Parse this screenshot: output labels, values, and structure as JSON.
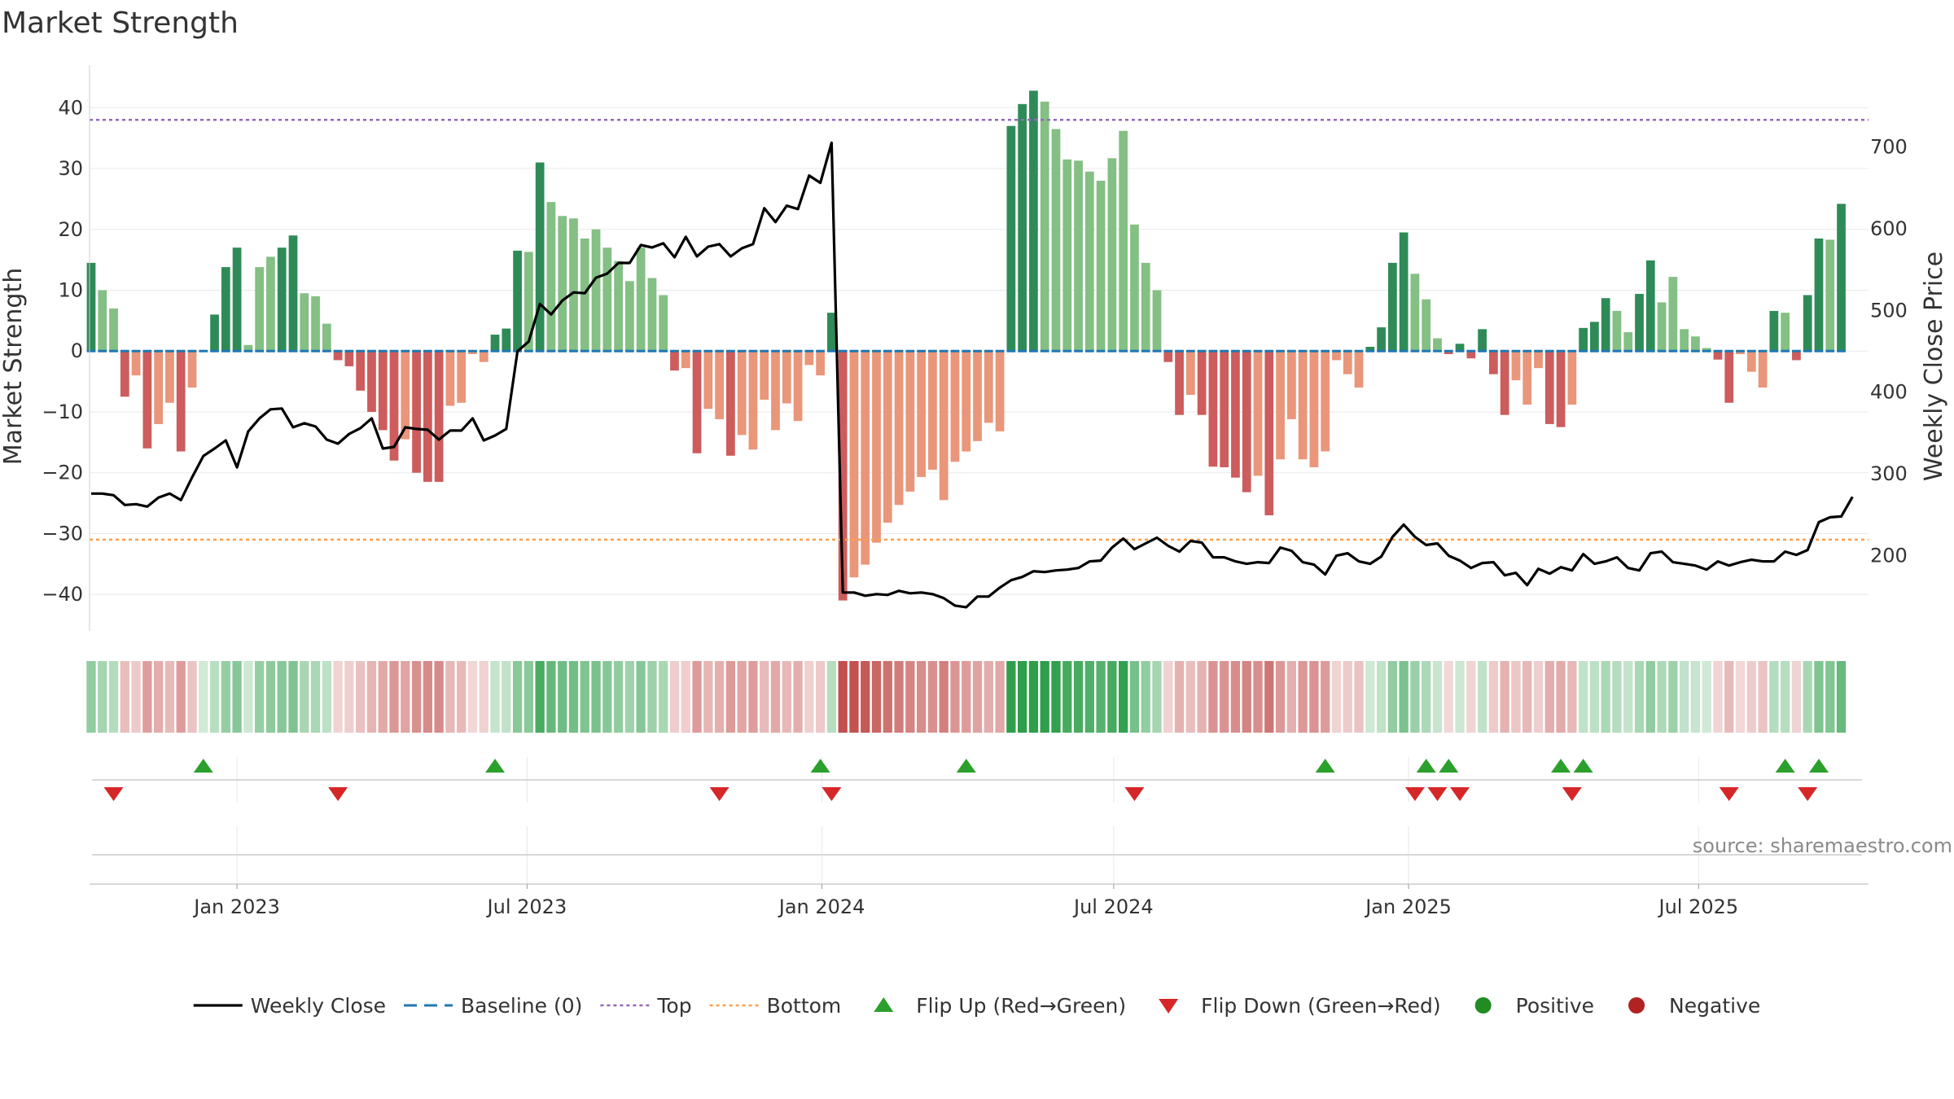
{
  "chart_data": {
    "type": "bar",
    "title": "Market Strength",
    "ylabel": "Market Strength",
    "y2label": "Weekly Close Price",
    "ylim": [
      -46,
      47
    ],
    "y2lim": [
      108,
      800
    ],
    "yticks": [
      40,
      30,
      20,
      10,
      0,
      -10,
      -20,
      -30,
      -40
    ],
    "y2ticks": [
      700,
      600,
      500,
      400,
      300,
      200
    ],
    "grid": true,
    "legend_position": "bottom",
    "top_threshold": 38,
    "bottom_threshold": -31,
    "x_range": [
      "2022-10-01",
      "2025-10-15"
    ],
    "x_ticks": [
      {
        "date": "2023-01-01",
        "label": "Jan 2023"
      },
      {
        "date": "2023-07-01",
        "label": "Jul 2023"
      },
      {
        "date": "2024-01-01",
        "label": "Jan 2024"
      },
      {
        "date": "2024-07-01",
        "label": "Jul 2024"
      },
      {
        "date": "2025-01-01",
        "label": "Jan 2025"
      },
      {
        "date": "2025-07-01",
        "label": "Jul 2025"
      }
    ],
    "start_date": "2022-10-02",
    "week_step_days": 7,
    "strength": [
      14.5,
      10,
      7,
      -7.5,
      -4,
      -16,
      -12,
      -8.5,
      -16.5,
      -6,
      0,
      6,
      13.8,
      17,
      1,
      13.8,
      15.5,
      17,
      19,
      9.5,
      9,
      4.5,
      -1.5,
      -2.5,
      -6.5,
      -10,
      -13,
      -18,
      -14.5,
      -20,
      -21.5,
      -21.5,
      -9,
      -8.5,
      -0.5,
      -1.8,
      2.7,
      3.7,
      16.5,
      16.3,
      31,
      24.5,
      22.2,
      21.8,
      18.5,
      20,
      17,
      14.8,
      11.5,
      17,
      12,
      9.2,
      -3.2,
      -2.8,
      -16.8,
      -9.5,
      -11.2,
      -17.2,
      -13.8,
      -16.2,
      -8,
      -13,
      -8.6,
      -11.5,
      -2.3,
      -4,
      6.3,
      -41,
      -37.2,
      -35.1,
      -31.5,
      -28.2,
      -25.3,
      -23.1,
      -20.7,
      -19.5,
      -24.5,
      -18.2,
      -16.5,
      -14.8,
      -11.8,
      -13.2,
      37,
      40.6,
      42.8,
      41,
      36.5,
      31.5,
      31.3,
      29.5,
      28,
      31.7,
      36.2,
      20.8,
      14.5,
      10,
      -1.8,
      -10.5,
      -7.2,
      -10.5,
      -19,
      -19.1,
      -20.8,
      -23.2,
      -20.5,
      -27,
      -17.8,
      -11.2,
      -17.8,
      -19.1,
      -16.5,
      -1.5,
      -3.8,
      -6,
      0.7,
      3.9,
      14.5,
      19.5,
      12.7,
      8.5,
      2.1,
      -0.5,
      1.2,
      -1.2,
      3.6,
      -3.8,
      -10.5,
      -4.8,
      -8.8,
      -2.8,
      -12,
      -12.5,
      -8.8,
      3.8,
      4.8,
      8.7,
      6.6,
      3.1,
      9.4,
      14.9,
      8,
      12.2,
      3.6,
      2.4,
      0.5,
      -1.4,
      -8.5,
      -0.5,
      -3.4,
      -6,
      6.6,
      6.3,
      -1.5,
      9.2,
      18.5,
      18.3,
      24.2
    ],
    "close": [
      276,
      276,
      274,
      262,
      263,
      260,
      271,
      276,
      268,
      296,
      322,
      331,
      341,
      308,
      352,
      368,
      379,
      380,
      357,
      362,
      358,
      342,
      337,
      349,
      356,
      368,
      331,
      333,
      357,
      355,
      354,
      342,
      353,
      353,
      368,
      341,
      347,
      355,
      450,
      462,
      508,
      495,
      512,
      522,
      521,
      540,
      545,
      558,
      558,
      580,
      577,
      582,
      565,
      590,
      566,
      578,
      581,
      566,
      576,
      581,
      625,
      608,
      628,
      624,
      665,
      656,
      705,
      155,
      155,
      151,
      153,
      152,
      157,
      154,
      155,
      153,
      148,
      139,
      137,
      150,
      150,
      161,
      170,
      174,
      181,
      180,
      182,
      183,
      185,
      193,
      194,
      210,
      221,
      208,
      215,
      222,
      212,
      205,
      218,
      216,
      198,
      198,
      193,
      190,
      192,
      191,
      210,
      206,
      192,
      189,
      177,
      200,
      203,
      193,
      190,
      199,
      223,
      238,
      223,
      213,
      215,
      200,
      194,
      185,
      191,
      192,
      176,
      179,
      164,
      184,
      178,
      186,
      182,
      202,
      190,
      193,
      198,
      185,
      182,
      203,
      205,
      192,
      190,
      188,
      183,
      193,
      188,
      192,
      195,
      193,
      193,
      205,
      201,
      207,
      241,
      247,
      248,
      272
    ],
    "flip_up_dates": [
      "2022-12-11",
      "2023-06-11",
      "2023-12-31",
      "2024-03-31",
      "2024-11-10",
      "2025-01-12",
      "2025-01-26",
      "2025-04-06",
      "2025-04-20",
      "2025-08-24",
      "2025-09-14"
    ],
    "flip_down_dates": [
      "2022-10-16",
      "2023-03-05",
      "2023-10-29",
      "2024-01-07",
      "2024-07-14",
      "2025-01-05",
      "2025-01-19",
      "2025-02-02",
      "2025-04-13",
      "2025-07-20",
      "2025-09-07"
    ],
    "colors": {
      "strong_positive": "#2e8b57",
      "weak_positive": "#84bf84",
      "strong_negative": "#cd5c5c",
      "weak_negative": "#e9967a",
      "close_line": "#000000",
      "baseline": "#1f77b4",
      "top_line": "#9467bd",
      "bottom_line": "#ff9f4a",
      "flip_up": "#2ca02c",
      "flip_down": "#d62728",
      "positive": "#228b22",
      "negative": "#b22222",
      "grid": "#e8e8e8"
    },
    "legend": [
      {
        "label": "Weekly Close",
        "marker": "line-solid",
        "color": "#000000"
      },
      {
        "label": "Baseline (0)",
        "marker": "line-dashed",
        "color": "#1f77b4"
      },
      {
        "label": "Top",
        "marker": "line-dotted",
        "color": "#9467bd"
      },
      {
        "label": "Bottom",
        "marker": "line-dotted",
        "color": "#ff9f4a"
      },
      {
        "label": "Flip Up (Red→Green)",
        "marker": "triangle-up",
        "color": "#2ca02c"
      },
      {
        "label": "Flip Down (Green→Red)",
        "marker": "triangle-down",
        "color": "#d62728"
      },
      {
        "label": "Positive",
        "marker": "circle",
        "color": "#228b22"
      },
      {
        "label": "Negative",
        "marker": "circle",
        "color": "#b22222"
      }
    ]
  },
  "source_text": "source: sharemaestro.com"
}
